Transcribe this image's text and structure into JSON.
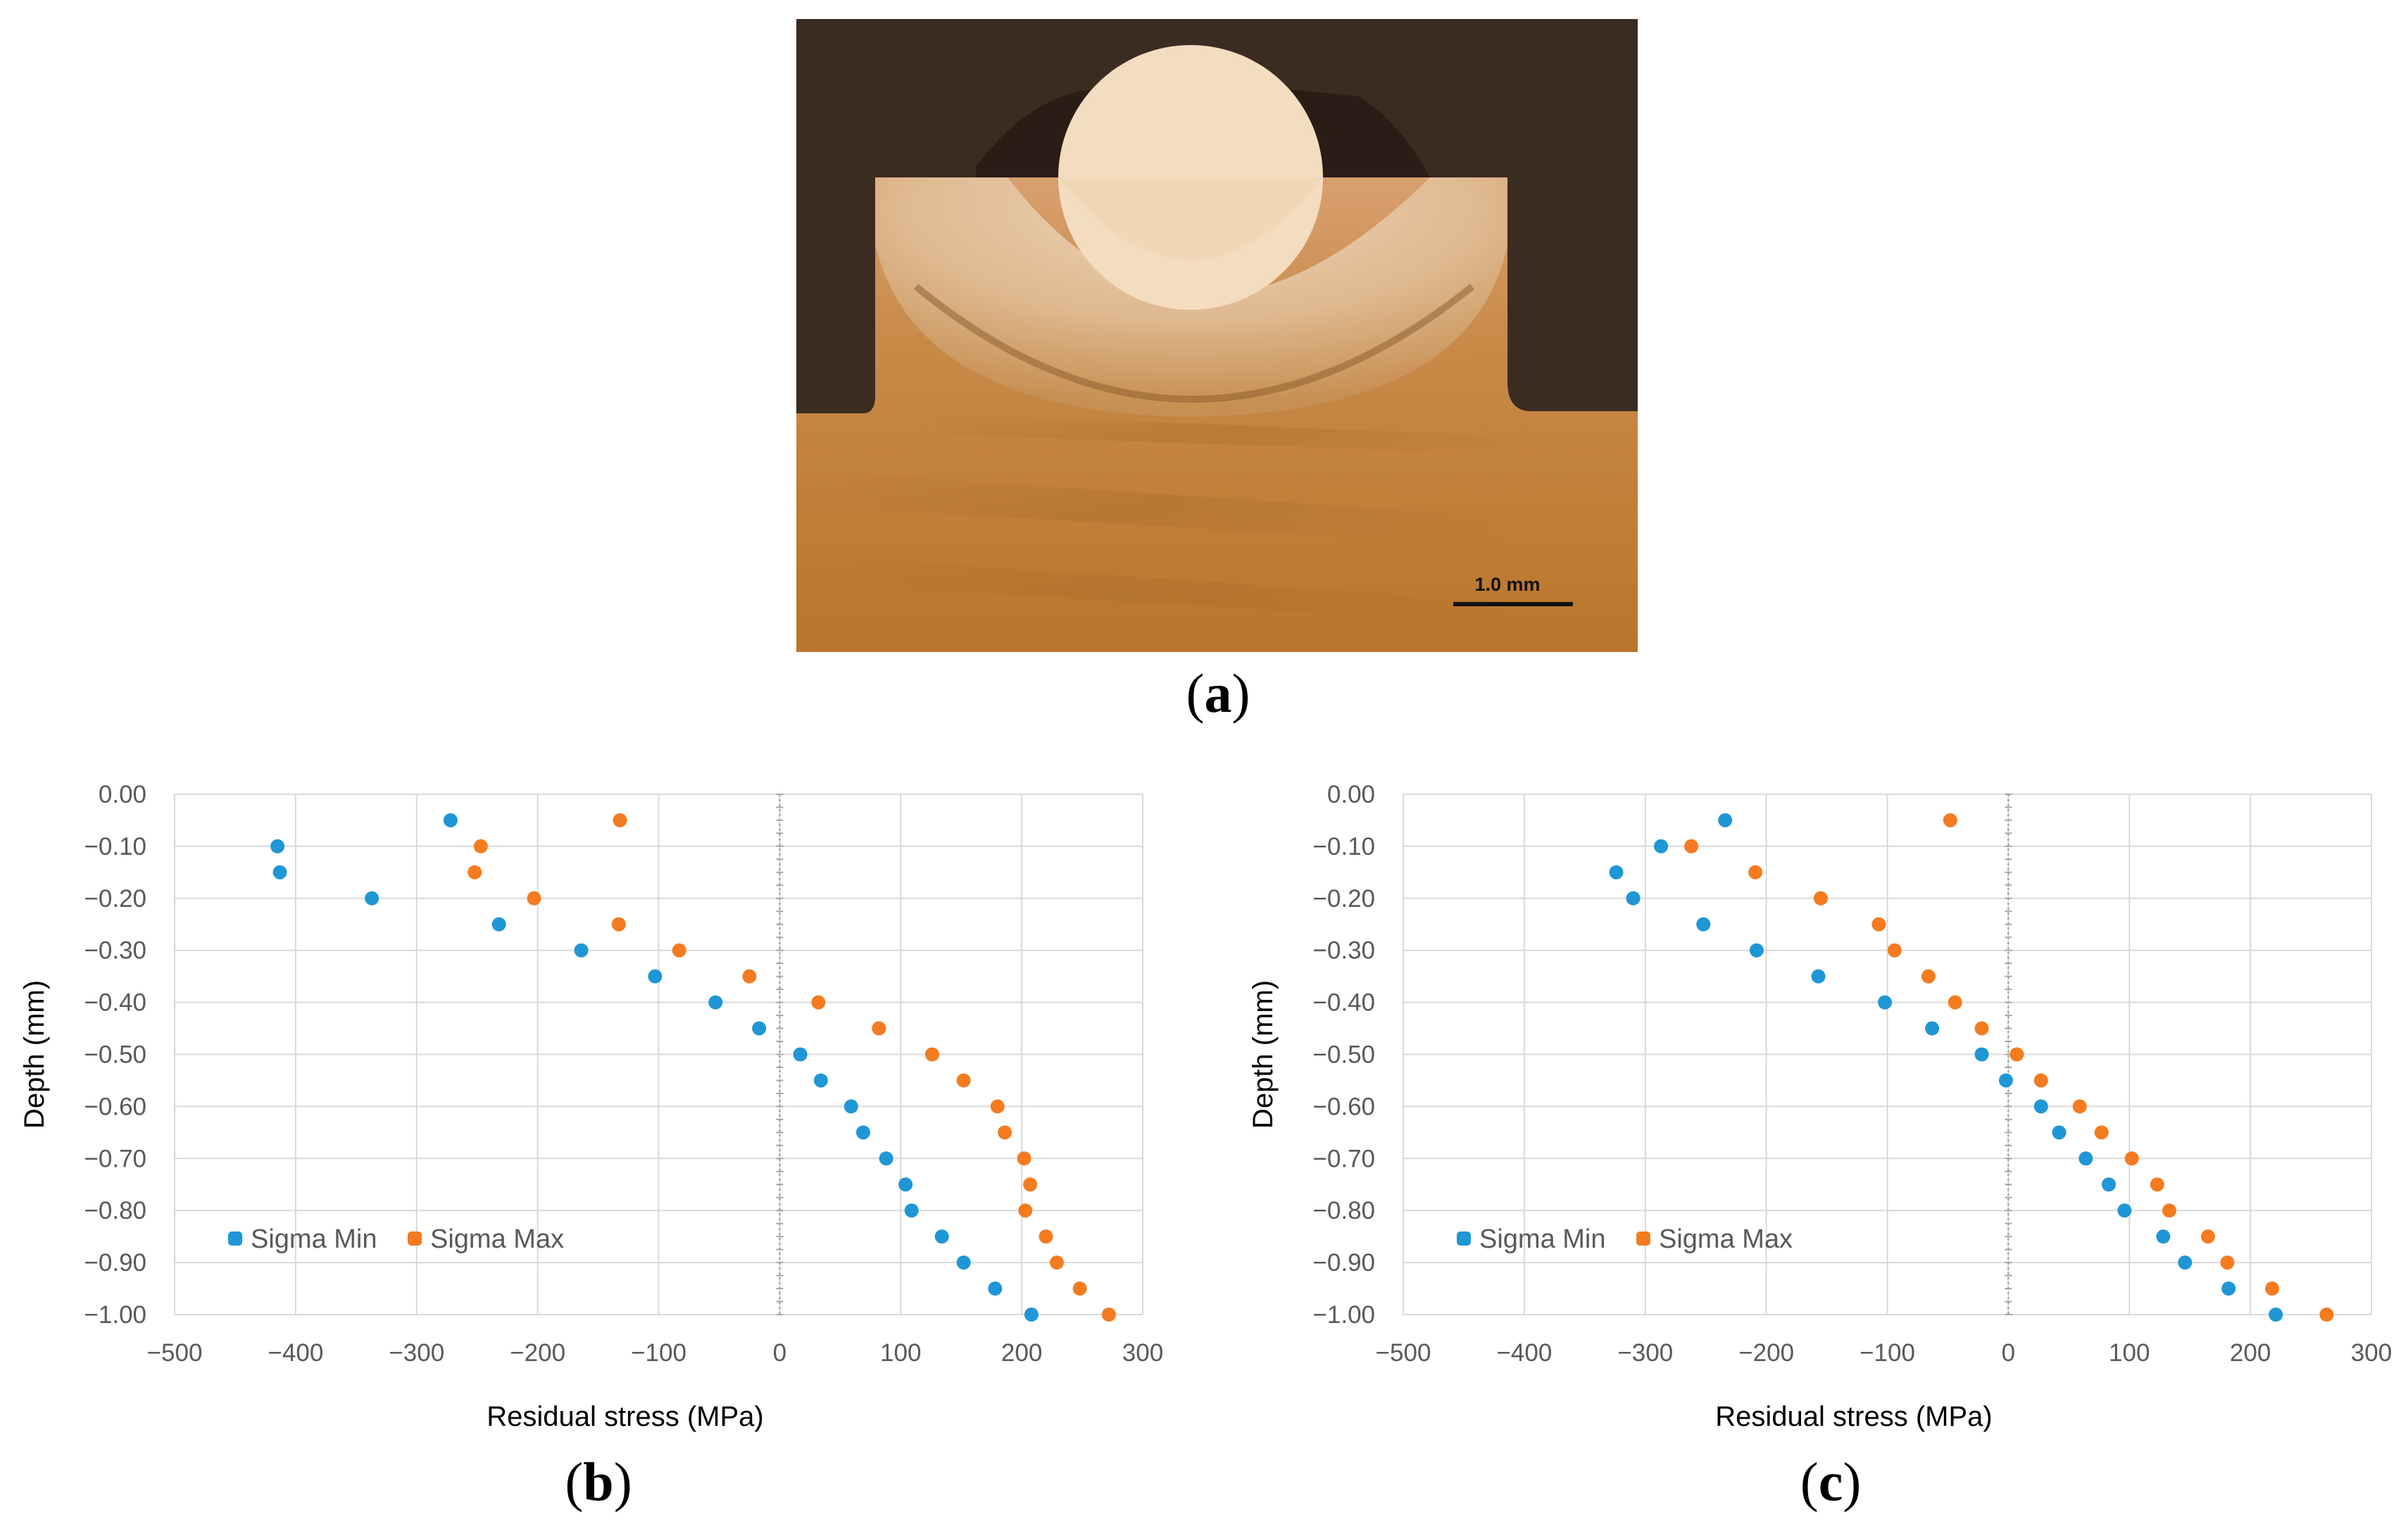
{
  "figure": {
    "label_a": "a",
    "label_b": "b",
    "label_c": "c",
    "scale_bar_text": "1.0 mm"
  },
  "colors": {
    "sigma_min": "#1f96d6",
    "sigma_max": "#f47b20",
    "grid": "#d9d9d9",
    "axis_text": "#595959"
  },
  "chart_data": [
    {
      "type": "scatter",
      "panel": "b",
      "title": "",
      "xlabel": "Residual stress (MPa)",
      "ylabel": "Depth (mm)",
      "xlim": [
        -500,
        300
      ],
      "ylim": [
        -1.0,
        0.0
      ],
      "xticks": [
        "−500",
        "−400",
        "−300",
        "−200",
        "−100",
        "0",
        "100",
        "200",
        "300"
      ],
      "yticks": [
        "0.00",
        "−0.10",
        "−0.20",
        "−0.30",
        "−0.40",
        "−0.50",
        "−0.60",
        "−0.70",
        "−0.80",
        "−0.90",
        "−1.00"
      ],
      "grid": true,
      "legend_position": "bottom-left",
      "series": [
        {
          "name": "Sigma Min",
          "points": [
            [
              -272,
              -0.05
            ],
            [
              -415,
              -0.1
            ],
            [
              -413,
              -0.15
            ],
            [
              -337,
              -0.2
            ],
            [
              -232,
              -0.25
            ],
            [
              -164,
              -0.3
            ],
            [
              -103,
              -0.35
            ],
            [
              -53,
              -0.4
            ],
            [
              -17,
              -0.45
            ],
            [
              17,
              -0.5
            ],
            [
              34,
              -0.55
            ],
            [
              59,
              -0.6
            ],
            [
              69,
              -0.65
            ],
            [
              88,
              -0.7
            ],
            [
              104,
              -0.75
            ],
            [
              109,
              -0.8
            ],
            [
              134,
              -0.85
            ],
            [
              152,
              -0.9
            ],
            [
              178,
              -0.95
            ],
            [
              208,
              -1.0
            ]
          ]
        },
        {
          "name": "Sigma Max",
          "points": [
            [
              -132,
              -0.05
            ],
            [
              -247,
              -0.1
            ],
            [
              -252,
              -0.15
            ],
            [
              -203,
              -0.2
            ],
            [
              -133,
              -0.25
            ],
            [
              -83,
              -0.3
            ],
            [
              -25,
              -0.35
            ],
            [
              32,
              -0.4
            ],
            [
              82,
              -0.45
            ],
            [
              126,
              -0.5
            ],
            [
              152,
              -0.55
            ],
            [
              180,
              -0.6
            ],
            [
              186,
              -0.65
            ],
            [
              202,
              -0.7
            ],
            [
              207,
              -0.75
            ],
            [
              203,
              -0.8
            ],
            [
              220,
              -0.85
            ],
            [
              229,
              -0.9
            ],
            [
              248,
              -0.95
            ],
            [
              272,
              -1.0
            ]
          ]
        }
      ]
    },
    {
      "type": "scatter",
      "panel": "c",
      "title": "",
      "xlabel": "Residual stress (MPa)",
      "ylabel": "Depth (mm)",
      "xlim": [
        -500,
        300
      ],
      "ylim": [
        -1.0,
        0.0
      ],
      "xticks": [
        "−500",
        "−400",
        "−300",
        "−200",
        "−100",
        "0",
        "100",
        "200",
        "300"
      ],
      "yticks": [
        "0.00",
        "−0.10",
        "−0.20",
        "−0.30",
        "−0.40",
        "−0.50",
        "−0.60",
        "−0.70",
        "−0.80",
        "−0.90",
        "−1.00"
      ],
      "grid": true,
      "legend_position": "bottom-left",
      "series": [
        {
          "name": "Sigma Min",
          "points": [
            [
              -234,
              -0.05
            ],
            [
              -287,
              -0.1
            ],
            [
              -324,
              -0.15
            ],
            [
              -310,
              -0.2
            ],
            [
              -252,
              -0.25
            ],
            [
              -208,
              -0.3
            ],
            [
              -157,
              -0.35
            ],
            [
              -102,
              -0.4
            ],
            [
              -63,
              -0.45
            ],
            [
              -22,
              -0.5
            ],
            [
              -2,
              -0.55
            ],
            [
              27,
              -0.6
            ],
            [
              42,
              -0.65
            ],
            [
              64,
              -0.7
            ],
            [
              83,
              -0.75
            ],
            [
              96,
              -0.8
            ],
            [
              128,
              -0.85
            ],
            [
              146,
              -0.9
            ],
            [
              182,
              -0.95
            ],
            [
              221,
              -1.0
            ]
          ]
        },
        {
          "name": "Sigma Max",
          "points": [
            [
              -48,
              -0.05
            ],
            [
              -262,
              -0.1
            ],
            [
              -209,
              -0.15
            ],
            [
              -155,
              -0.2
            ],
            [
              -107,
              -0.25
            ],
            [
              -94,
              -0.3
            ],
            [
              -66,
              -0.35
            ],
            [
              -44,
              -0.4
            ],
            [
              -22,
              -0.45
            ],
            [
              7,
              -0.5
            ],
            [
              27,
              -0.55
            ],
            [
              59,
              -0.6
            ],
            [
              77,
              -0.65
            ],
            [
              102,
              -0.7
            ],
            [
              123,
              -0.75
            ],
            [
              133,
              -0.8
            ],
            [
              165,
              -0.85
            ],
            [
              181,
              -0.9
            ],
            [
              218,
              -0.95
            ],
            [
              263,
              -1.0
            ]
          ]
        }
      ]
    }
  ]
}
